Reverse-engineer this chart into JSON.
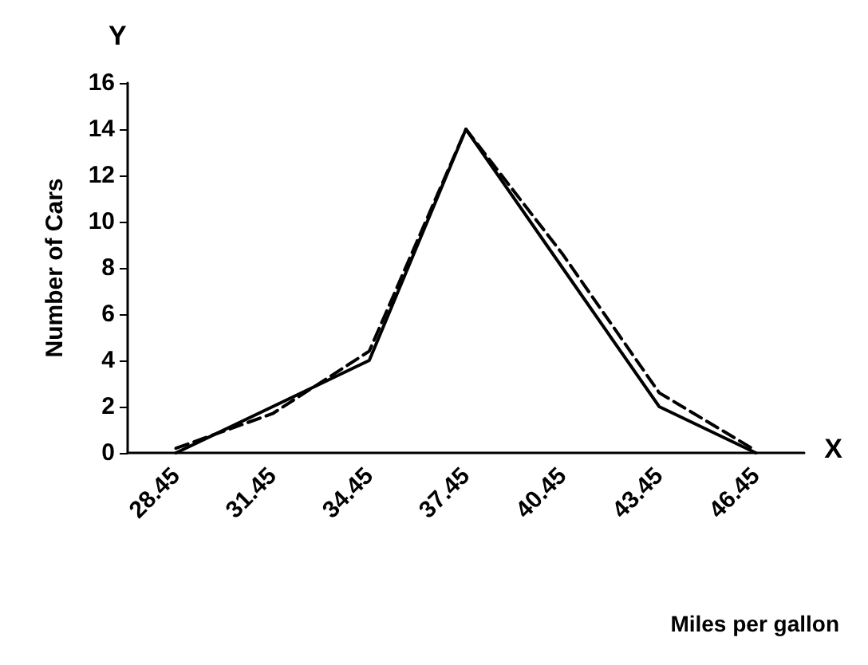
{
  "chart_data": {
    "type": "line",
    "xlabel": "Miles per gallon",
    "ylabel": "Number of Cars",
    "annotations": [
      "Y",
      "X"
    ],
    "categories": [
      "28.45",
      "31.45",
      "34.45",
      "37.45",
      "40.45",
      "43.45",
      "46.45"
    ],
    "series": [
      {
        "color": "#000000",
        "line_style": "solid",
        "values": [
          0,
          2,
          4,
          14,
          8,
          2,
          0
        ]
      },
      {
        "color": "#000000",
        "line_style": "dashed",
        "values": [
          0.2,
          1.7,
          4.4,
          14,
          8.6,
          2.6,
          0.1
        ]
      }
    ],
    "ylim": [
      0,
      16
    ],
    "yticks": [
      0,
      2,
      4,
      6,
      8,
      10,
      12,
      14,
      16
    ],
    "grid": false,
    "marker": "none"
  }
}
